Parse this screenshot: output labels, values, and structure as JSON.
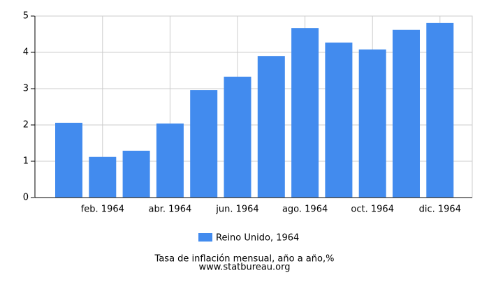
{
  "chart_data": {
    "type": "bar",
    "categories": [
      null,
      "feb. 1964",
      null,
      "abr. 1964",
      null,
      "jun. 1964",
      null,
      "ago. 1964",
      null,
      "oct. 1964",
      null,
      "dic. 1964"
    ],
    "series": [
      {
        "name": "Reino Unido, 1964",
        "color": "#428bee",
        "values": [
          2.06,
          1.12,
          1.29,
          2.04,
          2.96,
          3.33,
          3.9,
          4.67,
          4.27,
          4.08,
          4.62,
          4.81
        ]
      }
    ],
    "ylim": [
      0,
      5
    ],
    "yticks": [
      0,
      1,
      2,
      3,
      4,
      5
    ],
    "grid": true,
    "x_axis_label": "Tasa de inflación mensual, año a año,%",
    "source": "www.statbureau.org"
  }
}
